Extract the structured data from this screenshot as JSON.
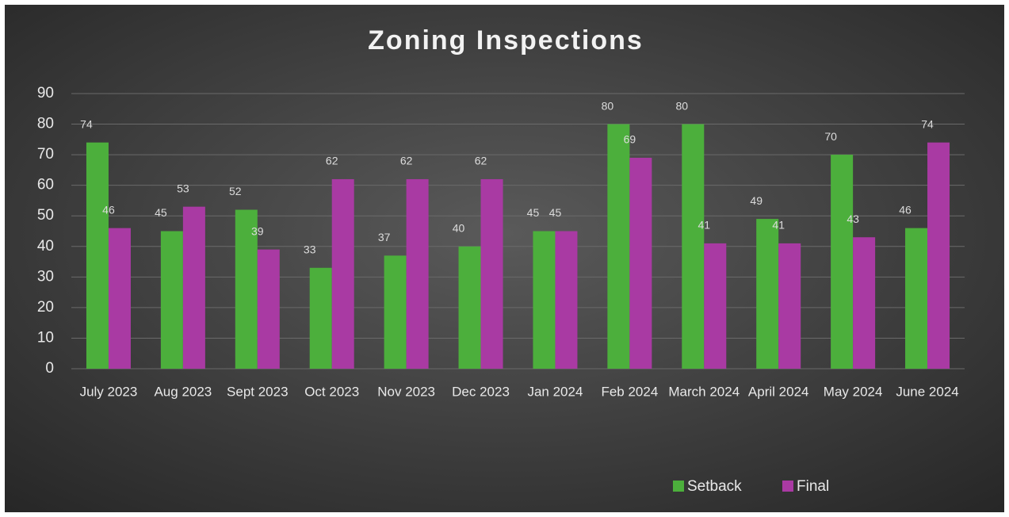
{
  "chart_data": {
    "type": "bar",
    "title": "Zoning Inspections",
    "categories": [
      "July 2023",
      "Aug 2023",
      "Sept 2023",
      "Oct 2023",
      "Nov 2023",
      "Dec 2023",
      "Jan 2024",
      "Feb 2024",
      "March 2024",
      "April 2024",
      "May 2024",
      "June 2024"
    ],
    "series": [
      {
        "name": "Setback",
        "color": "#4caf3c",
        "values": [
          74,
          45,
          52,
          33,
          37,
          40,
          45,
          80,
          80,
          49,
          70,
          46
        ]
      },
      {
        "name": "Final",
        "color": "#a93aa3",
        "values": [
          46,
          53,
          39,
          62,
          62,
          62,
          45,
          69,
          41,
          41,
          43,
          74
        ]
      }
    ],
    "ylim": [
      0,
      90
    ],
    "yticks": [
      0,
      10,
      20,
      30,
      40,
      50,
      60,
      70,
      80,
      90
    ],
    "grid": true,
    "legend": "bottom"
  }
}
